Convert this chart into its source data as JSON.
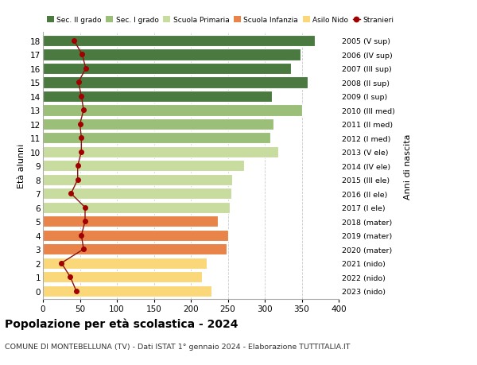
{
  "ages": [
    0,
    1,
    2,
    3,
    4,
    5,
    6,
    7,
    8,
    9,
    10,
    11,
    12,
    13,
    14,
    15,
    16,
    17,
    18
  ],
  "bar_values": [
    228,
    215,
    222,
    248,
    250,
    237,
    253,
    255,
    256,
    272,
    318,
    308,
    312,
    350,
    310,
    358,
    335,
    348,
    368
  ],
  "stranieri_values": [
    45,
    37,
    25,
    55,
    52,
    57,
    57,
    38,
    47,
    47,
    52,
    52,
    50,
    55,
    52,
    48,
    58,
    53,
    42
  ],
  "right_labels": [
    "2023 (nido)",
    "2022 (nido)",
    "2021 (nido)",
    "2020 (mater)",
    "2019 (mater)",
    "2018 (mater)",
    "2017 (I ele)",
    "2016 (II ele)",
    "2015 (III ele)",
    "2014 (IV ele)",
    "2013 (V ele)",
    "2012 (I med)",
    "2011 (II med)",
    "2010 (III med)",
    "2009 (I sup)",
    "2008 (II sup)",
    "2007 (III sup)",
    "2006 (IV sup)",
    "2005 (V sup)"
  ],
  "bar_colors": [
    "#FAD87A",
    "#FAD87A",
    "#FAD87A",
    "#E8844A",
    "#E8844A",
    "#E8844A",
    "#C8DCA0",
    "#C8DCA0",
    "#C8DCA0",
    "#C8DCA0",
    "#C8DCA0",
    "#9BBF78",
    "#9BBF78",
    "#9BBF78",
    "#4A7A40",
    "#4A7A40",
    "#4A7A40",
    "#4A7A40",
    "#4A7A40"
  ],
  "legend_labels": [
    "Sec. II grado",
    "Sec. I grado",
    "Scuola Primaria",
    "Scuola Infanzia",
    "Asilo Nido",
    "Stranieri"
  ],
  "legend_colors": [
    "#4A7A40",
    "#9BBF78",
    "#C8DCA0",
    "#E8844A",
    "#FAD87A",
    "#A00000"
  ],
  "stranieri_color": "#A00000",
  "stranieri_line_color": "#8B1010",
  "ylabel": "Età alunni",
  "ylabel_right": "Anni di nascita",
  "title": "Popolazione per età scolastica - 2024",
  "subtitle": "COMUNE DI MONTEBELLUNA (TV) - Dati ISTAT 1° gennaio 2024 - Elaborazione TUTTITALIA.IT",
  "xlim": [
    0,
    400
  ],
  "xticks": [
    0,
    50,
    100,
    150,
    200,
    250,
    300,
    350,
    400
  ],
  "background_color": "#FFFFFF",
  "grid_color": "#CCCCCC",
  "bar_height": 0.82
}
